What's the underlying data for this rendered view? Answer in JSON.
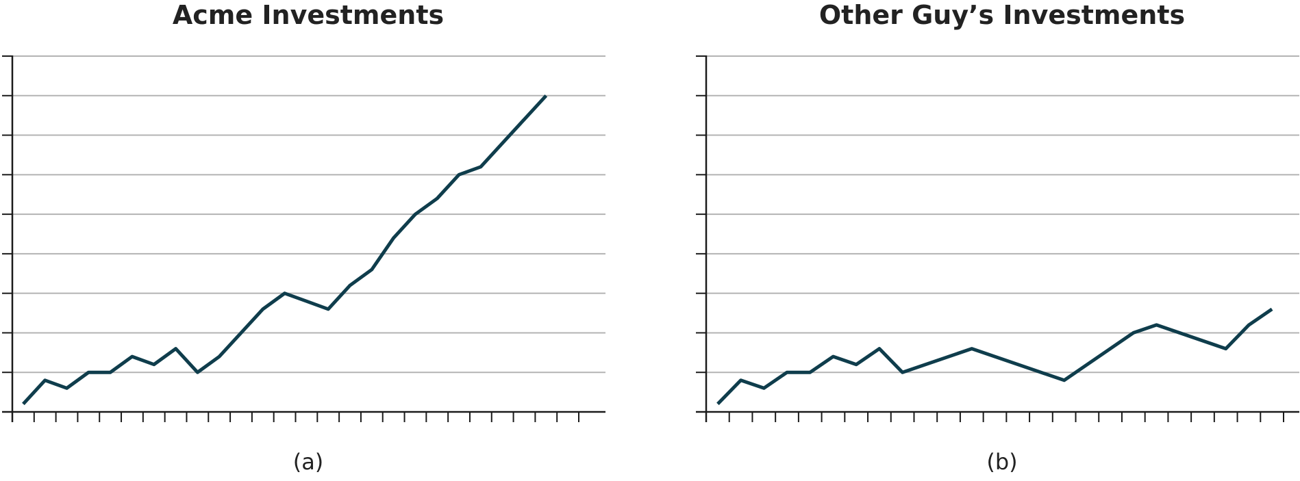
{
  "colors": {
    "line": "#0f3d4c",
    "grid": "#b3b3b3",
    "axis": "#1a1a1a"
  },
  "chart_data": [
    {
      "type": "line",
      "title": "Acme Investments",
      "caption": "(a)",
      "xlabel": "",
      "ylabel": "",
      "grid": true,
      "y_axis_labels": false,
      "x_ticks": 26,
      "y_ticks": 9,
      "xlim": [
        0,
        26
      ],
      "ylim": [
        0,
        9
      ],
      "x": [
        0.5,
        1.5,
        2.5,
        3.5,
        4.5,
        5.5,
        6.5,
        7.5,
        8.5,
        9.5,
        10.5,
        11.5,
        12.5,
        13.5,
        14.5,
        15.5,
        16.5,
        17.5,
        18.5,
        19.5,
        20.5,
        21.5,
        22.5,
        23.5,
        24.5
      ],
      "values": [
        0.2,
        0.8,
        0.6,
        1.0,
        1.0,
        1.4,
        1.2,
        1.6,
        1.0,
        1.4,
        2.0,
        2.6,
        3.0,
        2.8,
        2.6,
        3.2,
        3.6,
        4.4,
        5.0,
        5.4,
        6.0,
        6.2,
        6.8,
        7.4,
        8.0
      ]
    },
    {
      "type": "line",
      "title": "Other Guy’s Investments",
      "caption": "(b)",
      "xlabel": "",
      "ylabel": "",
      "grid": true,
      "y_axis_labels": false,
      "x_ticks": 25,
      "y_ticks": 9,
      "xlim": [
        0,
        25
      ],
      "ylim": [
        0,
        9
      ],
      "x": [
        0.5,
        1.5,
        2.5,
        3.5,
        4.5,
        5.5,
        6.5,
        7.5,
        8.5,
        11.5,
        15.5,
        18.5,
        19.5,
        22.5,
        23.5,
        24.5
      ],
      "values": [
        0.2,
        0.8,
        0.6,
        1.0,
        1.0,
        1.4,
        1.2,
        1.6,
        1.0,
        1.6,
        0.8,
        2.0,
        2.2,
        1.6,
        2.2,
        2.6
      ]
    }
  ]
}
